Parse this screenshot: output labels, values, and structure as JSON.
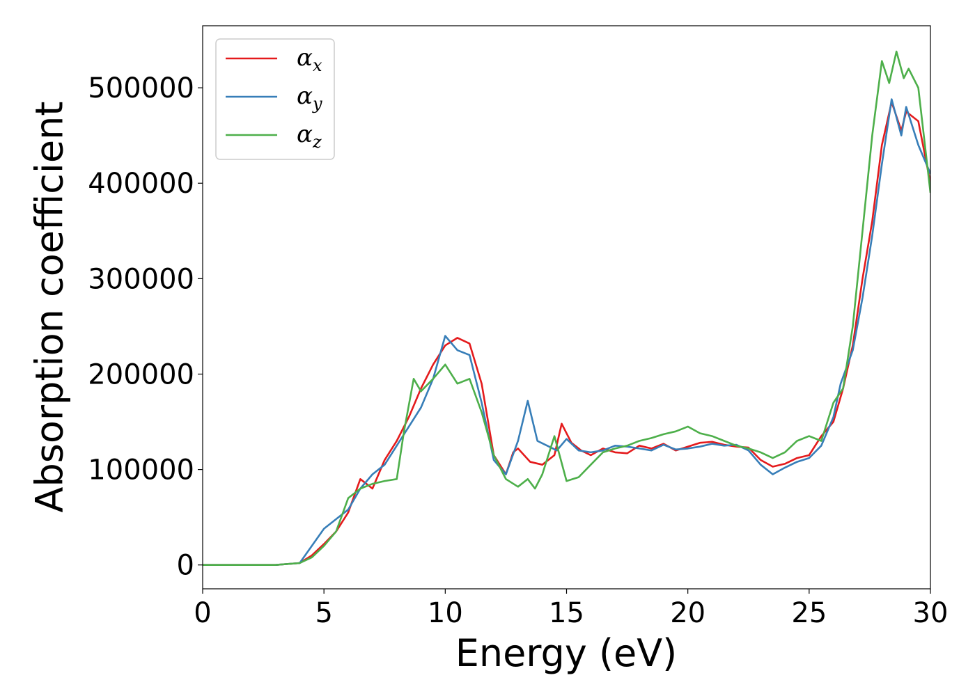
{
  "chart_data": {
    "type": "line",
    "xlabel": "Energy (eV)",
    "ylabel": "Absorption coefficient",
    "xlim": [
      0,
      30
    ],
    "ylim": [
      -25000,
      565000
    ],
    "xticks": [
      0,
      5,
      10,
      15,
      20,
      25,
      30
    ],
    "yticks": [
      0,
      100000,
      200000,
      300000,
      400000,
      500000
    ],
    "grid": false,
    "legend": "top-left",
    "series": [
      {
        "name": "αx",
        "base": "α",
        "sub": "x",
        "color": "#e41a1c",
        "points": [
          [
            0,
            0
          ],
          [
            3,
            0
          ],
          [
            4,
            2000
          ],
          [
            4.5,
            10000
          ],
          [
            5,
            22000
          ],
          [
            5.5,
            35000
          ],
          [
            6,
            55000
          ],
          [
            6.5,
            90000
          ],
          [
            7,
            80000
          ],
          [
            7.5,
            110000
          ],
          [
            8,
            130000
          ],
          [
            8.5,
            155000
          ],
          [
            9,
            185000
          ],
          [
            9.5,
            210000
          ],
          [
            10,
            230000
          ],
          [
            10.5,
            238000
          ],
          [
            11,
            232000
          ],
          [
            11.5,
            190000
          ],
          [
            12,
            115000
          ],
          [
            12.5,
            95000
          ],
          [
            12.8,
            118000
          ],
          [
            13,
            122000
          ],
          [
            13.5,
            108000
          ],
          [
            14,
            105000
          ],
          [
            14.5,
            115000
          ],
          [
            14.8,
            148000
          ],
          [
            15.2,
            128000
          ],
          [
            15.6,
            120000
          ],
          [
            16,
            115000
          ],
          [
            16.5,
            122000
          ],
          [
            17,
            118000
          ],
          [
            17.5,
            117000
          ],
          [
            18,
            125000
          ],
          [
            18.5,
            122000
          ],
          [
            19,
            127000
          ],
          [
            19.5,
            120000
          ],
          [
            20,
            124000
          ],
          [
            20.5,
            128000
          ],
          [
            21,
            129000
          ],
          [
            21.5,
            126000
          ],
          [
            22,
            124000
          ],
          [
            22.5,
            123000
          ],
          [
            23,
            110000
          ],
          [
            23.5,
            103000
          ],
          [
            24,
            106000
          ],
          [
            24.5,
            112000
          ],
          [
            25,
            115000
          ],
          [
            25.5,
            135000
          ],
          [
            26,
            150000
          ],
          [
            26.4,
            185000
          ],
          [
            26.8,
            230000
          ],
          [
            27.2,
            300000
          ],
          [
            27.6,
            360000
          ],
          [
            28,
            440000
          ],
          [
            28.4,
            485000
          ],
          [
            28.8,
            455000
          ],
          [
            29,
            475000
          ],
          [
            29.5,
            465000
          ],
          [
            30,
            400000
          ]
        ]
      },
      {
        "name": "αy",
        "base": "α",
        "sub": "y",
        "color": "#377eb8",
        "points": [
          [
            0,
            0
          ],
          [
            3,
            0
          ],
          [
            4,
            2000
          ],
          [
            4.5,
            20000
          ],
          [
            5,
            38000
          ],
          [
            5.5,
            48000
          ],
          [
            6,
            58000
          ],
          [
            6.5,
            80000
          ],
          [
            7,
            95000
          ],
          [
            7.5,
            105000
          ],
          [
            8,
            125000
          ],
          [
            8.5,
            145000
          ],
          [
            9,
            165000
          ],
          [
            9.5,
            195000
          ],
          [
            10,
            240000
          ],
          [
            10.5,
            225000
          ],
          [
            11,
            220000
          ],
          [
            11.5,
            170000
          ],
          [
            12,
            110000
          ],
          [
            12.5,
            95000
          ],
          [
            13,
            130000
          ],
          [
            13.4,
            172000
          ],
          [
            13.8,
            130000
          ],
          [
            14.2,
            125000
          ],
          [
            14.6,
            120000
          ],
          [
            15,
            132000
          ],
          [
            15.5,
            120000
          ],
          [
            16,
            118000
          ],
          [
            16.5,
            120000
          ],
          [
            17,
            125000
          ],
          [
            17.5,
            124000
          ],
          [
            18,
            122000
          ],
          [
            18.5,
            120000
          ],
          [
            19,
            126000
          ],
          [
            19.5,
            121000
          ],
          [
            20,
            122000
          ],
          [
            20.5,
            124000
          ],
          [
            21,
            127000
          ],
          [
            21.5,
            125000
          ],
          [
            22,
            126000
          ],
          [
            22.5,
            120000
          ],
          [
            23,
            105000
          ],
          [
            23.5,
            95000
          ],
          [
            24,
            102000
          ],
          [
            24.5,
            108000
          ],
          [
            25,
            112000
          ],
          [
            25.5,
            125000
          ],
          [
            26,
            155000
          ],
          [
            26.3,
            190000
          ],
          [
            26.8,
            225000
          ],
          [
            27.2,
            280000
          ],
          [
            27.6,
            345000
          ],
          [
            28,
            420000
          ],
          [
            28.4,
            488000
          ],
          [
            28.8,
            450000
          ],
          [
            29,
            480000
          ],
          [
            29.5,
            440000
          ],
          [
            30,
            410000
          ]
        ]
      },
      {
        "name": "αz",
        "base": "α",
        "sub": "z",
        "color": "#4daf4a",
        "points": [
          [
            0,
            0
          ],
          [
            3,
            0
          ],
          [
            4,
            2000
          ],
          [
            4.5,
            8000
          ],
          [
            5,
            20000
          ],
          [
            5.5,
            35000
          ],
          [
            6,
            70000
          ],
          [
            6.5,
            80000
          ],
          [
            7,
            85000
          ],
          [
            7.5,
            88000
          ],
          [
            8,
            90000
          ],
          [
            8.3,
            140000
          ],
          [
            8.7,
            195000
          ],
          [
            9,
            182000
          ],
          [
            9.5,
            195000
          ],
          [
            10,
            210000
          ],
          [
            10.5,
            190000
          ],
          [
            11,
            195000
          ],
          [
            11.5,
            160000
          ],
          [
            12,
            115000
          ],
          [
            12.5,
            90000
          ],
          [
            13,
            82000
          ],
          [
            13.4,
            90000
          ],
          [
            13.7,
            80000
          ],
          [
            14,
            95000
          ],
          [
            14.5,
            135000
          ],
          [
            15,
            88000
          ],
          [
            15.5,
            92000
          ],
          [
            16,
            105000
          ],
          [
            16.5,
            118000
          ],
          [
            17,
            122000
          ],
          [
            17.5,
            125000
          ],
          [
            18,
            130000
          ],
          [
            18.5,
            133000
          ],
          [
            19,
            137000
          ],
          [
            19.5,
            140000
          ],
          [
            20,
            145000
          ],
          [
            20.5,
            138000
          ],
          [
            21,
            135000
          ],
          [
            21.5,
            130000
          ],
          [
            22,
            125000
          ],
          [
            22.5,
            122000
          ],
          [
            23,
            118000
          ],
          [
            23.5,
            112000
          ],
          [
            24,
            118000
          ],
          [
            24.5,
            130000
          ],
          [
            25,
            135000
          ],
          [
            25.5,
            130000
          ],
          [
            26,
            170000
          ],
          [
            26.4,
            185000
          ],
          [
            26.8,
            250000
          ],
          [
            27.2,
            350000
          ],
          [
            27.6,
            450000
          ],
          [
            28,
            528000
          ],
          [
            28.3,
            505000
          ],
          [
            28.6,
            538000
          ],
          [
            28.9,
            510000
          ],
          [
            29.1,
            520000
          ],
          [
            29.5,
            500000
          ],
          [
            30,
            390000
          ]
        ]
      }
    ]
  }
}
